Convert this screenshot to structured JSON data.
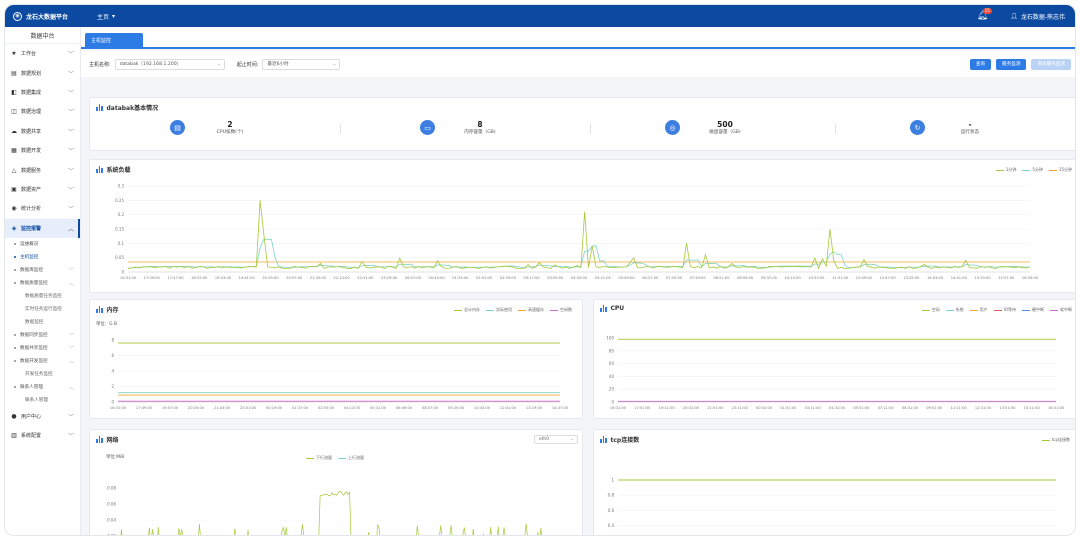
{
  "app": {
    "title": "龙石大数据平台",
    "home_menu": "主页",
    "notification_count": "15",
    "user": "龙石数据-熊志伟"
  },
  "sidebar": {
    "title": "数据中台",
    "items_top": [
      {
        "label": "工作台",
        "icon": "star-icon"
      },
      {
        "label": "数据规划",
        "icon": "plan-icon"
      },
      {
        "label": "数据集成",
        "icon": "integration-icon"
      },
      {
        "label": "数据治理",
        "icon": "governance-icon"
      },
      {
        "label": "数据共享",
        "icon": "share-icon"
      },
      {
        "label": "数据开发",
        "icon": "dev-icon"
      },
      {
        "label": "数据服务",
        "icon": "service-icon"
      },
      {
        "label": "数据资产",
        "icon": "asset-icon"
      },
      {
        "label": "统计分析",
        "icon": "analysis-icon"
      }
    ],
    "active_item": {
      "label": "监控报警",
      "icon": "monitor-icon"
    },
    "sub_items": [
      {
        "label": "运维概况",
        "kind": "sub"
      },
      {
        "label": "主机监控",
        "kind": "sub",
        "current": true
      },
      {
        "label": "数据库监控",
        "kind": "sub",
        "chev": "﹀"
      },
      {
        "label": "数据质量监控",
        "kind": "sub",
        "chev": "︿"
      },
      {
        "label": "数据质量任务监控",
        "kind": "sub2"
      },
      {
        "label": "实时任务运行监控",
        "kind": "sub2"
      },
      {
        "label": "数据监控",
        "kind": "sub2"
      },
      {
        "label": "数据同步监控",
        "kind": "sub",
        "chev": "﹀"
      },
      {
        "label": "数据共享监控",
        "kind": "sub",
        "chev": "﹀"
      },
      {
        "label": "数据开发监控",
        "kind": "sub",
        "chev": "︿"
      },
      {
        "label": "开发任务监控",
        "kind": "sub2"
      },
      {
        "label": "联系人管理",
        "kind": "sub",
        "chev": "︿"
      },
      {
        "label": "联系人管理",
        "kind": "sub2"
      }
    ],
    "items_bottom": [
      {
        "label": "用户中心",
        "icon": "user-center-icon"
      },
      {
        "label": "系统配置",
        "icon": "config-icon"
      }
    ]
  },
  "tab": {
    "label": "主机监控"
  },
  "filters": {
    "host_label": "主机名称:",
    "host_value": "databak（192.168.1.200）",
    "range_label": "起止时间:",
    "range_value": "最近6小时",
    "btn_query": "查询",
    "btn_more": "服务监测",
    "btn_disabled": "添加服务监测"
  },
  "basic": {
    "title": "databak基本情况",
    "stats": [
      {
        "value": "2",
        "label": "CPU核数(个)",
        "icon": "cpu-icon"
      },
      {
        "value": "8",
        "label": "内存容量（GB)",
        "icon": "memory-icon"
      },
      {
        "value": "500",
        "label": "磁盘容量（GB)",
        "icon": "disk-icon"
      },
      {
        "value": "-",
        "label": "运行状态",
        "icon": "status-icon"
      }
    ]
  },
  "load": {
    "title": "系统负载",
    "legend": [
      "1分钟",
      "5分钟",
      "15分钟"
    ],
    "colors": [
      "#a6c93a",
      "#7fd4c7",
      "#f0a830"
    ],
    "yticks": [
      "0.3",
      "0.25",
      "0.2",
      "0.15",
      "0.1",
      "0.05",
      "0"
    ],
    "xticks": [
      "16:31:00",
      "17:09:00",
      "17:47:00",
      "18:25:00",
      "19:03:00",
      "19:41:00",
      "20:19:00",
      "20:57:00",
      "21:35:00",
      "22:13:00",
      "22:51:00",
      "23:29:00",
      "00:07:00",
      "00:45:00",
      "01:23:00",
      "02:01:00",
      "02:39:00",
      "03:17:00",
      "03:55:00",
      "04:33:00",
      "05:11:00",
      "05:49:00",
      "06:27:00",
      "07:05:00",
      "07:43:00",
      "08:21:00",
      "08:59:00",
      "09:37:00",
      "10:15:00",
      "10:53:00",
      "11:31:00",
      "12:09:00",
      "12:47:00",
      "13:25:00",
      "14:03:00",
      "14:41:00",
      "15:19:00",
      "15:57:00",
      "16:35:00"
    ]
  },
  "memory": {
    "title": "内存",
    "unit": "单位：G B",
    "legend": [
      "总计内存",
      "实际使用",
      "高速缓存",
      "空闲数"
    ],
    "colors": [
      "#a6c93a",
      "#7fd4c7",
      "#f0a830",
      "#c86ac8"
    ],
    "yticks": [
      "8",
      "6",
      "4",
      "2",
      "0"
    ],
    "xticks": [
      "16:31:00",
      "17:49:00",
      "19:07:00",
      "20:25:00",
      "21:43:00",
      "23:01:00",
      "00:19:00",
      "01:37:00",
      "02:55:00",
      "04:13:00",
      "05:31:00",
      "06:49:00",
      "08:07:00",
      "09:25:00",
      "10:43:00",
      "12:01:00",
      "13:19:00",
      "14:37:00"
    ],
    "values": {
      "total": 7.6,
      "used": 1.2,
      "cache": 0.9,
      "free": 0.1
    }
  },
  "cpu": {
    "title": "CPU",
    "legend": [
      "空闲",
      "系统",
      "用户",
      "IO等待",
      "硬中断",
      "软中断"
    ],
    "colors": [
      "#a6c93a",
      "#7fd4c7",
      "#f0a830",
      "#e06060",
      "#5a8ad8",
      "#c86ac8"
    ],
    "yticks": [
      "100",
      "80",
      "60",
      "40",
      "20",
      "0"
    ],
    "xticks": [
      "16:31:00",
      "17:51:00",
      "19:11:00",
      "20:31:00",
      "21:51:00",
      "23:11:00",
      "00:31:00",
      "01:51:00",
      "03:11:00",
      "04:31:00",
      "05:51:00",
      "07:11:00",
      "08:31:00",
      "09:51:00",
      "11:11:00",
      "12:31:00",
      "13:51:00",
      "15:11:00",
      "16:31:00"
    ],
    "values": {
      "idle": 98,
      "system": 1,
      "user": 1
    }
  },
  "network": {
    "title": "网络",
    "unit": "单位:MiB",
    "dropdown": "eth0",
    "legend": [
      "下行流量",
      "上行流量"
    ],
    "colors": [
      "#a6c93a",
      "#7fd4c7"
    ],
    "yticks": [
      "0.08",
      "0.06",
      "0.04",
      "0.02",
      "0"
    ],
    "xticks": [
      "16:31:00",
      "17:12:00",
      "17:53:00",
      "18:34:00",
      "19:15:00",
      "19:56:00",
      "20:37:00",
      "21:18:00",
      "21:59:00",
      "22:40:00",
      "23:21:00",
      "00:02:00",
      "00:43:00",
      "01:24:00",
      "02:05:00",
      "02:46:00",
      "03:27:00",
      "04:08:00",
      "04:49:00"
    ]
  },
  "tcp": {
    "title": "tcp连接数",
    "legend": [
      "tcp连接数"
    ],
    "colors": [
      "#a6c93a"
    ],
    "yticks": [
      "1",
      "0.8",
      "0.6",
      "0.4",
      "0.2",
      "0"
    ],
    "xticks": [
      "16:31:00",
      "17:12:00",
      "17:53:00",
      "18:34:00",
      "19:15:00",
      "19:56:00",
      "20:37:00",
      "21:18:00",
      "21:59:00",
      "22:40:00",
      "23:21:00",
      "00:02:00",
      "00:43:00",
      "01:24:00",
      "02:05:00",
      "02:46:00",
      "03:27:00",
      "04:08:00",
      "04:49:00"
    ],
    "value": 1
  }
}
